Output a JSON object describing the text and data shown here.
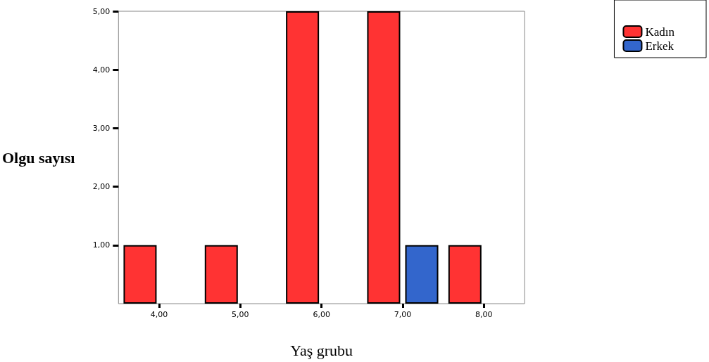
{
  "chart_data": {
    "type": "bar",
    "xlabel": "Yaş grubu",
    "ylabel": "Olgu sayısı",
    "categories": [
      "4,00",
      "5,00",
      "6,00",
      "7,00",
      "8,00"
    ],
    "series": [
      {
        "name": "Kadın",
        "color": "#ff3333",
        "values": [
          1,
          1,
          5,
          5,
          1
        ]
      },
      {
        "name": "Erkek",
        "color": "#3366cc",
        "values": [
          null,
          null,
          null,
          1,
          null
        ]
      }
    ],
    "ylim": [
      0,
      5
    ],
    "yticks": [
      {
        "value": 1,
        "label": "1,00"
      },
      {
        "value": 2,
        "label": "2,00"
      },
      {
        "value": 3,
        "label": "3,00"
      },
      {
        "value": 4,
        "label": "4,00"
      },
      {
        "value": 5,
        "label": "5,00"
      }
    ],
    "grid": false,
    "legend": "top right"
  }
}
